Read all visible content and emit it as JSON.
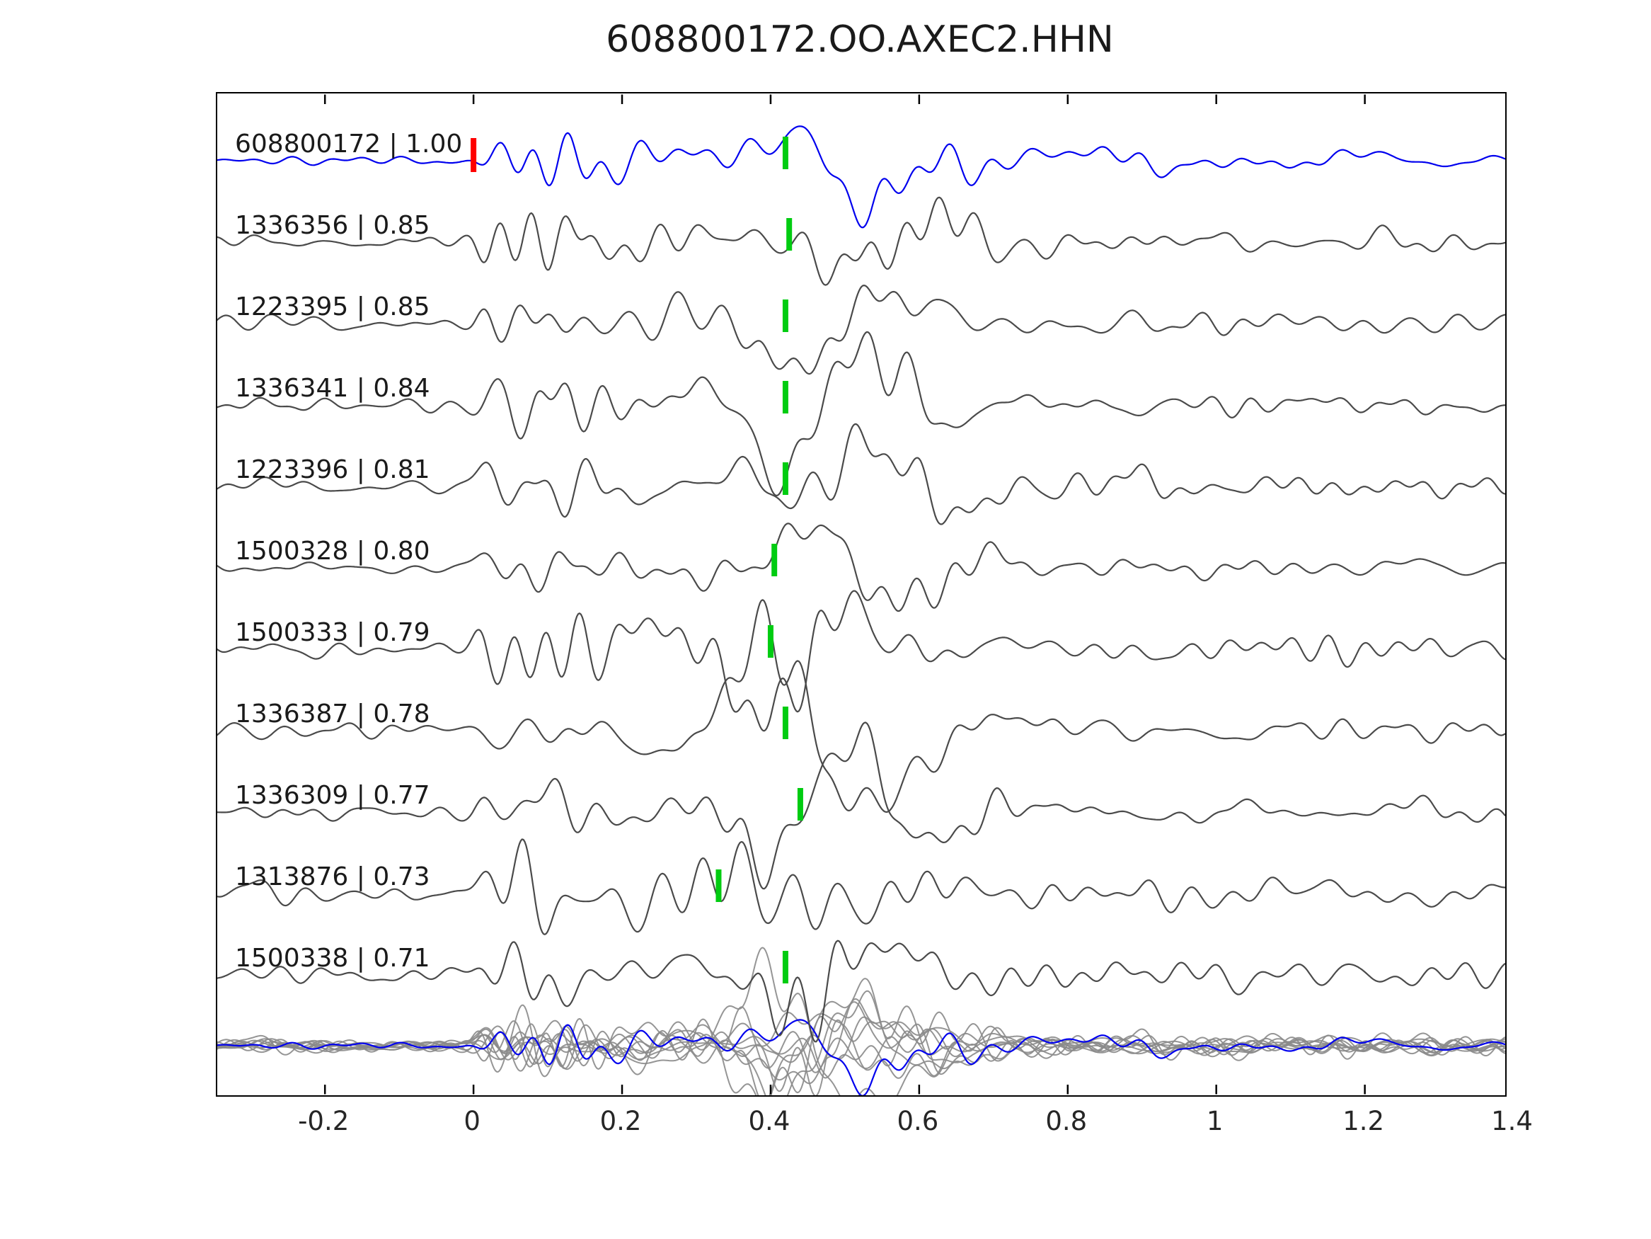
{
  "title": "608800172.OO.AXEC2.HHN",
  "chart_data": {
    "type": "line",
    "title": "608800172.OO.AXEC2.HHN",
    "xlabel": "",
    "ylabel": "",
    "grid": false,
    "legend": "none",
    "x_range": [
      -0.345,
      1.389
    ],
    "x_tick_values": [
      -0.2,
      0,
      0.2,
      0.4,
      0.6,
      0.8,
      1,
      1.2,
      1.4
    ],
    "x_tick_labels": [
      "-0.2",
      "0",
      "0.2",
      "0.4",
      "0.6",
      "0.8",
      "1",
      "1.2",
      "1.4"
    ],
    "description": "Stack of 11 aligned seismic waveform traces (template at top in blue, matches below in gray) with green pick markers near t=0.42, a red origin marker at t=0 on the reference trace, and an overlay of all traces at the bottom.",
    "traces": [
      {
        "id": "608800172",
        "correlation": 1.0,
        "label": "608800172 | 1.00",
        "color": "#0000ee",
        "pick_time": 0.42,
        "origin_marker_time": 0.0,
        "role": "reference"
      },
      {
        "id": "1336356",
        "correlation": 0.85,
        "label": "1336356 | 0.85",
        "color": "#4a4a4a",
        "pick_time": 0.425
      },
      {
        "id": "1223395",
        "correlation": 0.85,
        "label": "1223395 | 0.85",
        "color": "#4a4a4a",
        "pick_time": 0.42
      },
      {
        "id": "1336341",
        "correlation": 0.84,
        "label": "1336341 | 0.84",
        "color": "#4a4a4a",
        "pick_time": 0.42
      },
      {
        "id": "1223396",
        "correlation": 0.81,
        "label": "1223396 | 0.81",
        "color": "#4a4a4a",
        "pick_time": 0.42
      },
      {
        "id": "1500328",
        "correlation": 0.8,
        "label": "1500328 | 0.80",
        "color": "#4a4a4a",
        "pick_time": 0.405
      },
      {
        "id": "1500333",
        "correlation": 0.79,
        "label": "1500333 | 0.79",
        "color": "#4a4a4a",
        "pick_time": 0.4
      },
      {
        "id": "1336387",
        "correlation": 0.78,
        "label": "1336387 | 0.78",
        "color": "#4a4a4a",
        "pick_time": 0.42
      },
      {
        "id": "1336309",
        "correlation": 0.77,
        "label": "1336309 | 0.77",
        "color": "#4a4a4a",
        "pick_time": 0.44
      },
      {
        "id": "1313876",
        "correlation": 0.73,
        "label": "1313876 | 0.73",
        "color": "#4a4a4a",
        "pick_time": 0.33
      },
      {
        "id": "1500338",
        "correlation": 0.71,
        "label": "1500338 | 0.71",
        "color": "#4a4a4a",
        "pick_time": 0.42
      }
    ],
    "pick_marker_color": "#00cc11",
    "origin_marker_color": "#ff0000",
    "overlay": {
      "gray_color": "#8a8a8a",
      "highlight_color": "#0000ee"
    }
  }
}
